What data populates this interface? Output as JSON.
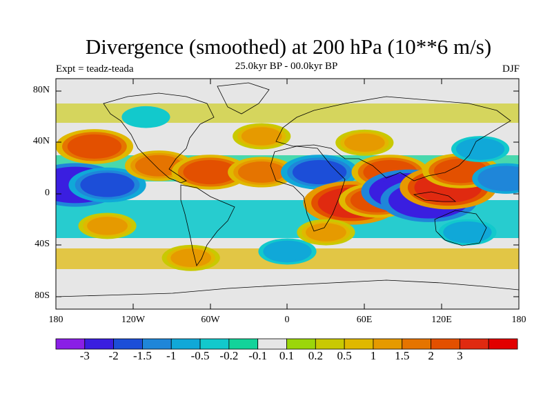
{
  "title": "Divergence (smoothed) at 200 hPa (10**6 m/s)",
  "subtitle": "25.0kyr BP - 00.0kyr BP",
  "left_label": "Expt = teadz-teada",
  "right_label": "DJF",
  "lat_labels": [
    "80N",
    "40N",
    "0",
    "40S",
    "80S"
  ],
  "lon_labels": [
    "180",
    "120W",
    "60W",
    "0",
    "60E",
    "120E",
    "180"
  ],
  "colorbar": {
    "colors": [
      "#8a1fe6",
      "#3a1ee0",
      "#1c4ed8",
      "#1f86d9",
      "#10a8d8",
      "#12c9cc",
      "#13d39a",
      "#e6e6e6",
      "#9bd60a",
      "#c9c902",
      "#e0b800",
      "#e69a00",
      "#e57400",
      "#e35000",
      "#e02a10",
      "#e20000"
    ],
    "labels": [
      "-3",
      "-2",
      "-1.5",
      "-1",
      "-0.5",
      "-0.2",
      "-0.1",
      "0.1",
      "0.2",
      "0.5",
      "1",
      "1.5",
      "2",
      "3"
    ]
  },
  "map_data": {
    "lon_range": [
      -180,
      180
    ],
    "lat_range": [
      -90,
      90
    ],
    "anomalies": [
      {
        "lon": -150,
        "lat": 37,
        "value": 2.0
      },
      {
        "lon": -165,
        "lat": 7,
        "value": -3.0
      },
      {
        "lon": -140,
        "lat": 7,
        "value": -2.0
      },
      {
        "lon": -100,
        "lat": 22,
        "value": 1.5
      },
      {
        "lon": -60,
        "lat": 17,
        "value": 2.0
      },
      {
        "lon": -20,
        "lat": 17,
        "value": 1.5
      },
      {
        "lon": 25,
        "lat": 17,
        "value": -2.0
      },
      {
        "lon": 50,
        "lat": -7,
        "value": 3.0
      },
      {
        "lon": 70,
        "lat": -5,
        "value": 2.0
      },
      {
        "lon": 80,
        "lat": 17,
        "value": 2.0
      },
      {
        "lon": 95,
        "lat": 2,
        "value": -3.0
      },
      {
        "lon": 110,
        "lat": -5,
        "value": -3.0
      },
      {
        "lon": 125,
        "lat": 5,
        "value": 3.0
      },
      {
        "lon": 135,
        "lat": 18,
        "value": 2.0
      },
      {
        "lon": 150,
        "lat": 35,
        "value": -1.0
      },
      {
        "lon": 170,
        "lat": 12,
        "value": -1.5
      },
      {
        "lon": -140,
        "lat": -25,
        "value": 1.0
      },
      {
        "lon": -75,
        "lat": -50,
        "value": 1.0
      },
      {
        "lon": 0,
        "lat": -45,
        "value": -1.0
      },
      {
        "lon": 30,
        "lat": -30,
        "value": 1.0
      },
      {
        "lon": 140,
        "lat": -30,
        "value": -1.0
      },
      {
        "lon": -20,
        "lat": 45,
        "value": 1.0
      },
      {
        "lon": 60,
        "lat": 40,
        "value": 1.0
      },
      {
        "lon": -110,
        "lat": 60,
        "value": -0.5
      }
    ]
  }
}
